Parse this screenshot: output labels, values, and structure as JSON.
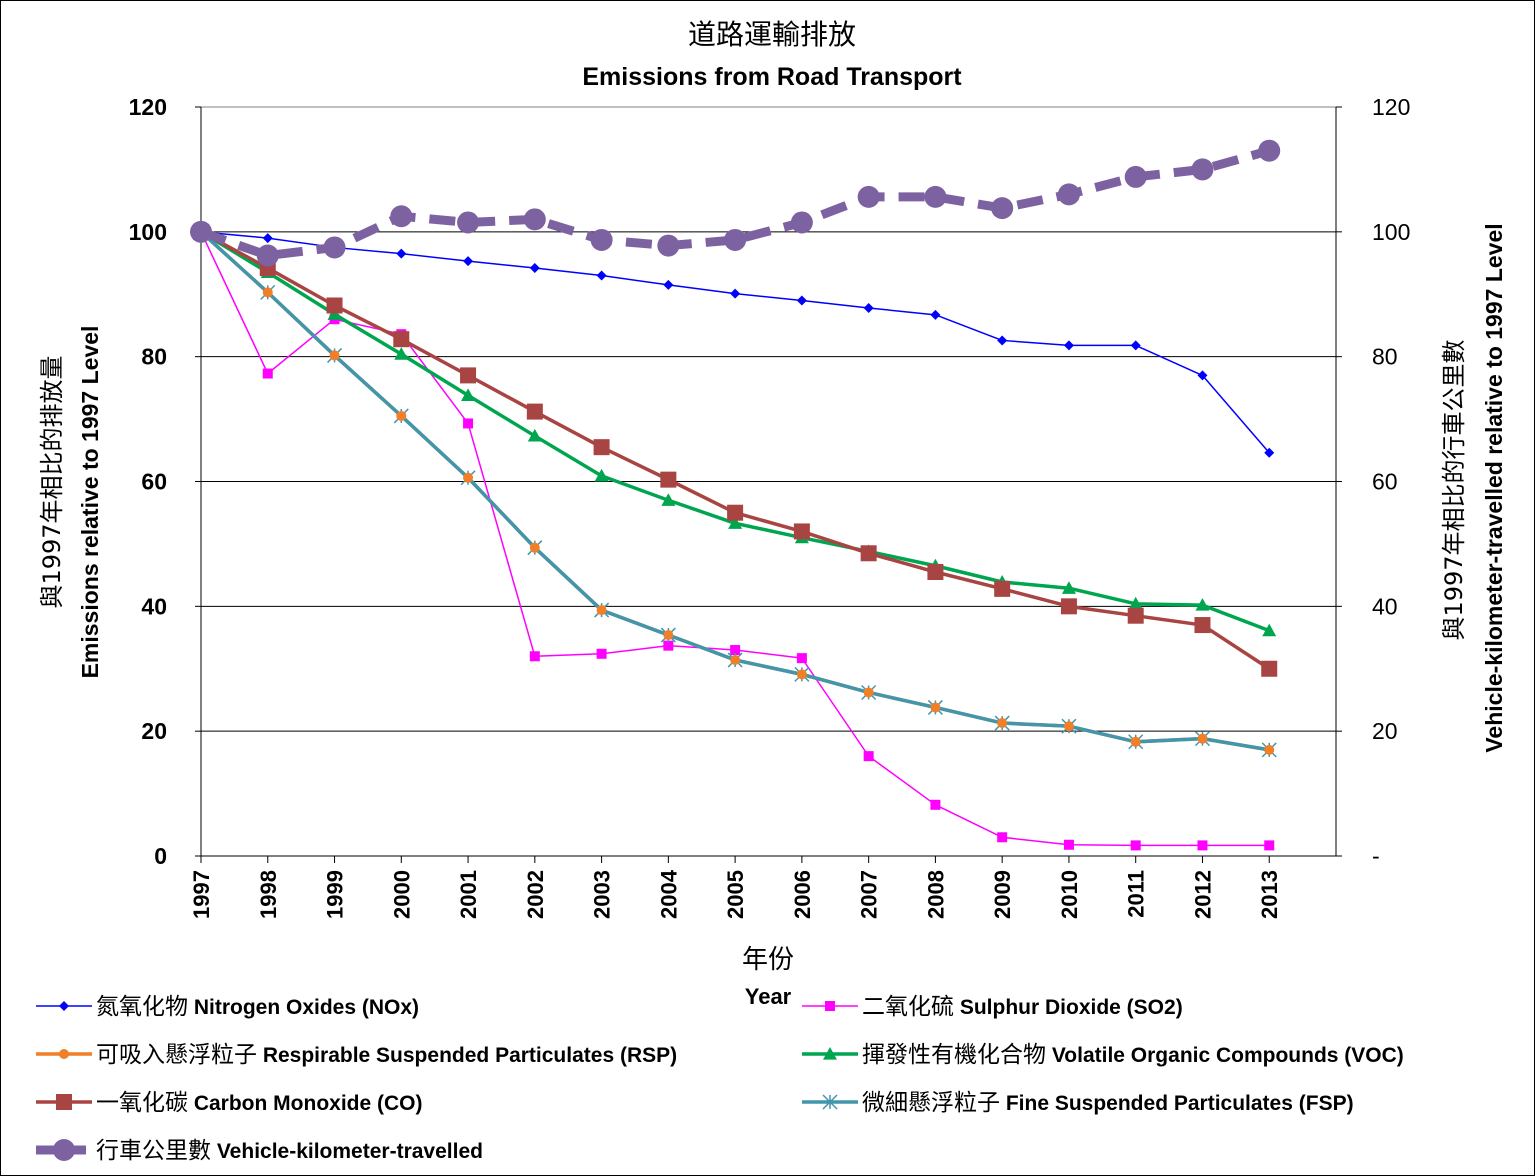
{
  "chart_data": {
    "type": "line",
    "title_zh": "道路運輸排放",
    "title_en": "Emissions from Road Transport",
    "xlabel_zh": "年份",
    "xlabel_en": "Year",
    "ylabel_left_zh": "與1997年相比的排放量",
    "ylabel_left_en": "Emissions relative to 1997 Level",
    "ylabel_right_zh": "與1997年相比的行車公里數",
    "ylabel_right_en": "Vehicle-kilometer-travelled relative to 1997 Level",
    "ylim": [
      0,
      120
    ],
    "yticks": [
      0,
      20,
      40,
      60,
      80,
      100,
      120
    ],
    "yticks_right": [
      "-",
      "20",
      "40",
      "60",
      "80",
      "100",
      "120"
    ],
    "grid": true,
    "categories": [
      "1997",
      "1998",
      "1999",
      "2000",
      "2001",
      "2002",
      "2003",
      "2004",
      "2005",
      "2006",
      "2007",
      "2008",
      "2009",
      "2010",
      "2011",
      "2012",
      "2013"
    ],
    "series": [
      {
        "key": "nox",
        "name_zh": "氮氧化物",
        "name_en": "Nitrogen Oxides (NOx)",
        "color": "#0000FF",
        "marker": "diamond",
        "dash": false,
        "values": [
          100,
          99,
          97.5,
          96.5,
          95.3,
          94.2,
          93,
          91.5,
          90.1,
          89,
          87.8,
          86.7,
          82.6,
          81.8,
          81.8,
          77,
          64.6
        ]
      },
      {
        "key": "so2",
        "name_zh": "二氧化硫",
        "name_en": "Sulphur Dioxide (SO2)",
        "color": "#FF00FF",
        "marker": "square",
        "dash": false,
        "values": [
          100,
          77.3,
          86,
          83.6,
          69.3,
          32,
          32.4,
          33.7,
          33,
          31.7,
          16,
          8.2,
          3,
          1.8,
          1.7,
          1.7,
          1.7
        ]
      },
      {
        "key": "rsp",
        "name_zh": "可吸入懸浮粒子",
        "name_en": "Respirable Suspended Particulates (RSP)",
        "color": "#F07F28",
        "marker": "circle",
        "dash": false,
        "values": [
          100,
          90.3,
          80.2,
          70.5,
          60.6,
          49.4,
          39.4,
          35.4,
          31.4,
          29.1,
          26.2,
          23.8,
          21.3,
          20.8,
          18.3,
          18.8,
          17
        ]
      },
      {
        "key": "voc",
        "name_zh": "揮發性有機化合物",
        "name_en": "Volatile Organic Compounds (VOC)",
        "color": "#00A64F",
        "marker": "triangle",
        "dash": false,
        "values": [
          100,
          93.5,
          86.8,
          80.4,
          73.8,
          67.3,
          60.9,
          57,
          53.3,
          51,
          48.8,
          46.5,
          43.9,
          42.9,
          40.4,
          40.2,
          36.1
        ]
      },
      {
        "key": "co",
        "name_zh": "一氧化碳",
        "name_en": "Carbon Monoxide (CO)",
        "color": "#A84442",
        "marker": "square",
        "dash": false,
        "values": [
          100,
          94.2,
          88.2,
          82.8,
          77,
          71.2,
          65.5,
          60.3,
          55,
          52,
          48.5,
          45.5,
          42.8,
          40,
          38.5,
          37,
          30
        ]
      },
      {
        "key": "fsp",
        "name_zh": "微細懸浮粒子",
        "name_en": "Fine Suspended Particulates (FSP)",
        "color": "#4196AC",
        "marker": "asterisk",
        "dash": false,
        "values": [
          100,
          90.3,
          80.2,
          70.5,
          60.6,
          49.4,
          39.4,
          35.4,
          31.4,
          29.1,
          26.2,
          23.8,
          21.3,
          20.8,
          18.3,
          18.8,
          17
        ]
      },
      {
        "key": "vkt",
        "name_zh": "行車公里數",
        "name_en": "Vehicle-kilometer-travelled",
        "color": "#7D62A1",
        "marker": "bigcircle",
        "dash": true,
        "values": [
          100,
          96.2,
          97.5,
          102.5,
          101.5,
          102,
          98.7,
          97.8,
          98.7,
          101.5,
          105.6,
          105.6,
          103.8,
          106,
          108.8,
          110,
          113
        ]
      }
    ],
    "legend": [
      {
        "series": "nox",
        "label_zh": "氮氧化物",
        "label_en": "Nitrogen Oxides (NOx)"
      },
      {
        "series": "so2",
        "label_zh": "二氧化硫",
        "label_en": "Sulphur Dioxide (SO2)"
      },
      {
        "series": "rsp",
        "label_zh": "可吸入懸浮粒子",
        "label_en": "Respirable Suspended Particulates (RSP)"
      },
      {
        "series": "voc",
        "label_zh": "揮發性有機化合物",
        "label_en": "Volatile Organic Compounds (VOC)"
      },
      {
        "series": "co",
        "label_zh": "一氧化碳",
        "label_en": "Carbon Monoxide (CO)"
      },
      {
        "series": "fsp",
        "label_zh": "微細懸浮粒子",
        "label_en": "Fine Suspended Particulates (FSP)"
      },
      {
        "series": "vkt",
        "label_zh": "行車公里數",
        "label_en": "Vehicle-kilometer-travelled"
      }
    ]
  }
}
